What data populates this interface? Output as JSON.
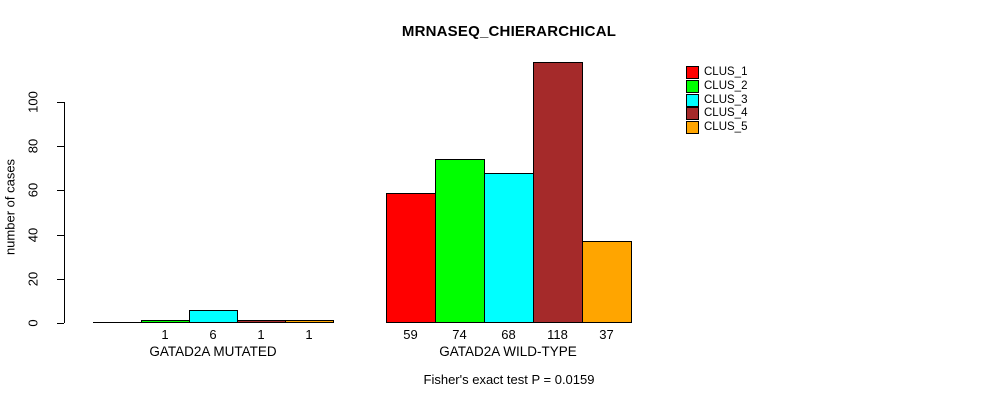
{
  "chart_data": {
    "type": "bar",
    "title": "MRNASEQ_CHIERARCHICAL",
    "xlabel": "",
    "ylabel": "number of cases",
    "ylim": [
      0,
      120
    ],
    "yticks": [
      0,
      20,
      40,
      60,
      80,
      100
    ],
    "grid": false,
    "legend_position": "top-right",
    "categories": [
      "GATAD2A MUTATED",
      "GATAD2A WILD-TYPE"
    ],
    "series": [
      {
        "name": "CLUS_1",
        "color": "#FF0000",
        "values": [
          0,
          59
        ]
      },
      {
        "name": "CLUS_2",
        "color": "#00FF00",
        "values": [
          1,
          74
        ]
      },
      {
        "name": "CLUS_3",
        "color": "#00FFFF",
        "values": [
          6,
          68
        ]
      },
      {
        "name": "CLUS_4",
        "color": "#A52A2A",
        "values": [
          1,
          118
        ]
      },
      {
        "name": "CLUS_5",
        "color": "#FFA500",
        "values": [
          1,
          37
        ]
      }
    ],
    "bar_value_labels": [
      [
        "",
        "1",
        "6",
        "1",
        "1"
      ],
      [
        "59",
        "74",
        "68",
        "118",
        "37"
      ]
    ],
    "annotation": "Fisher's exact test P = 0.0159"
  }
}
